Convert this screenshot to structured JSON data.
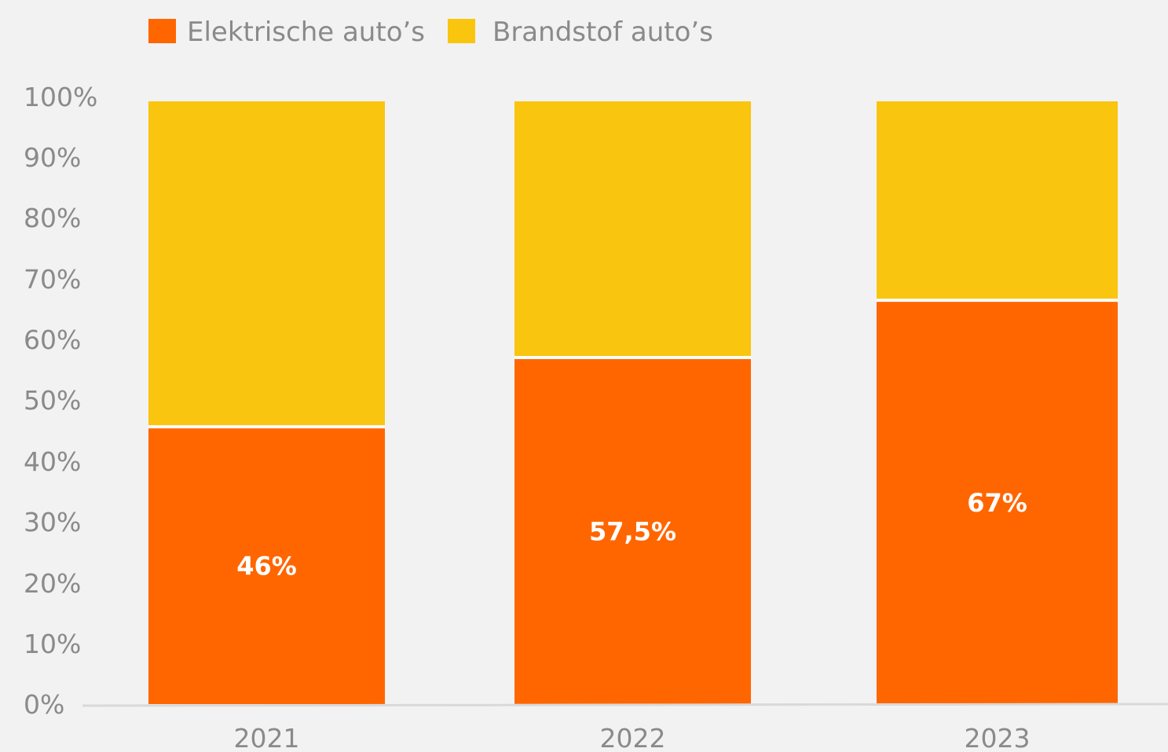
{
  "chart_data": {
    "type": "bar",
    "stacked": true,
    "percent_stacked": true,
    "categories": [
      "2021",
      "2022",
      "2023"
    ],
    "series": [
      {
        "name": "Elektrische auto’s",
        "values": [
          46,
          57.5,
          67
        ],
        "color": "#ff6600"
      },
      {
        "name": "Brandstof auto’s",
        "values": [
          54,
          42.5,
          33
        ],
        "color": "#f9c50f"
      }
    ],
    "data_labels": [
      "46%",
      "57,5%",
      "67%"
    ],
    "y_ticks": [
      "0%",
      "10%",
      "20%",
      "30%",
      "40%",
      "50%",
      "60%",
      "70%",
      "80%",
      "90%",
      "100%"
    ],
    "ylim": [
      0,
      100
    ],
    "legend_position": "top-left",
    "grid": false
  }
}
